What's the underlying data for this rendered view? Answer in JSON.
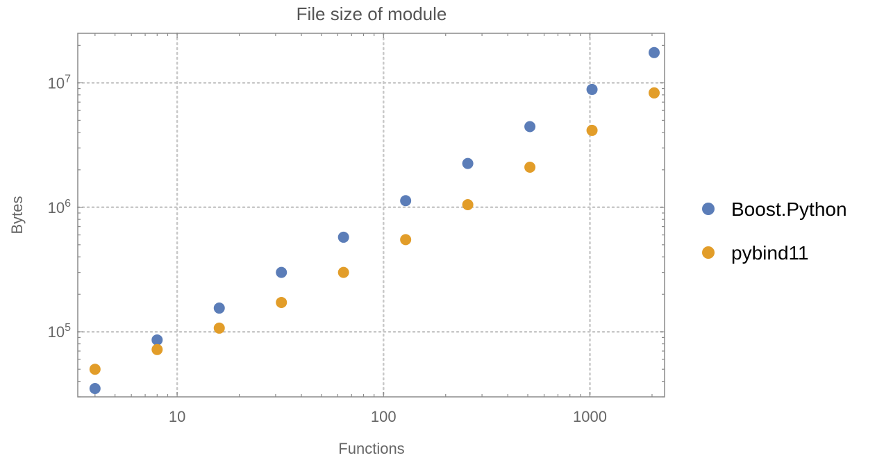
{
  "chart_data": {
    "type": "scatter",
    "title": "File size of module",
    "xlabel": "Functions",
    "ylabel": "Bytes",
    "x_scale": "log",
    "y_scale": "log",
    "xlim": [
      3.3,
      2300
    ],
    "ylim": [
      30000,
      25000000
    ],
    "grid": true,
    "legend_position": "right",
    "x_tick_labels": [
      {
        "value": 10,
        "label": "10"
      },
      {
        "value": 100,
        "label": "100"
      },
      {
        "value": 1000,
        "label": "1000"
      }
    ],
    "y_tick_labels": [
      {
        "value": 100000,
        "base": "10",
        "exp": "5"
      },
      {
        "value": 1000000,
        "base": "10",
        "exp": "6"
      },
      {
        "value": 10000000,
        "base": "10",
        "exp": "7"
      }
    ],
    "x": [
      4,
      8,
      16,
      32,
      64,
      128,
      256,
      512,
      1024,
      2048
    ],
    "series": [
      {
        "name": "Boost.Python",
        "color": "#5b7db8",
        "values": [
          35000,
          86000,
          155000,
          300000,
          575000,
          1130000,
          2250000,
          4450000,
          8850000,
          17500000
        ]
      },
      {
        "name": "pybind11",
        "color": "#e29d29",
        "values": [
          50000,
          72000,
          107000,
          172000,
          300000,
          550000,
          1050000,
          2100000,
          4150000,
          8300000
        ]
      }
    ]
  }
}
